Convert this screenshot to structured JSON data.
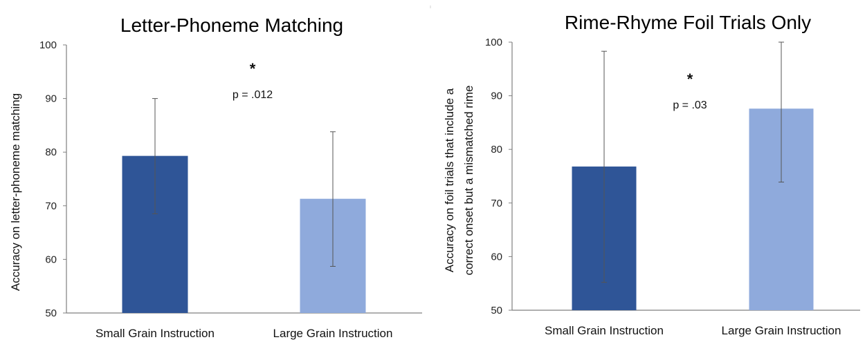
{
  "chart_data": [
    {
      "type": "bar",
      "title": "Letter-Phoneme Matching",
      "xlabel": "",
      "ylabel": "Accuracy on letter-phoneme matching",
      "ylim": [
        50,
        100
      ],
      "yticks": [
        50,
        60,
        70,
        80,
        90,
        100
      ],
      "grid": false,
      "categories": [
        "Small Grain Instruction",
        "Large Grain Instruction"
      ],
      "values": [
        79.3,
        71.3
      ],
      "error_upper": [
        90.0,
        83.8
      ],
      "error_lower": [
        68.5,
        58.7
      ],
      "colors": [
        "#2f5597",
        "#8faadc"
      ],
      "annotations": {
        "star": "*",
        "p_value": "p = .012"
      }
    },
    {
      "type": "bar",
      "title": "Rime-Rhyme Foil Trials Only",
      "xlabel": "",
      "ylabel": [
        "Accuracy on foil trials that include a",
        "correct onset but a mismatched rime"
      ],
      "ylim": [
        50,
        100
      ],
      "yticks": [
        50,
        60,
        70,
        80,
        90,
        100
      ],
      "grid": false,
      "categories": [
        "Small Grain Instruction",
        "Large Grain Instruction"
      ],
      "values": [
        76.8,
        87.6
      ],
      "error_upper": [
        98.3,
        100
      ],
      "error_lower": [
        55.2,
        73.9
      ],
      "colors": [
        "#2f5597",
        "#8faadc"
      ],
      "annotations": {
        "star": "*",
        "p_value": "p = .03"
      }
    }
  ]
}
